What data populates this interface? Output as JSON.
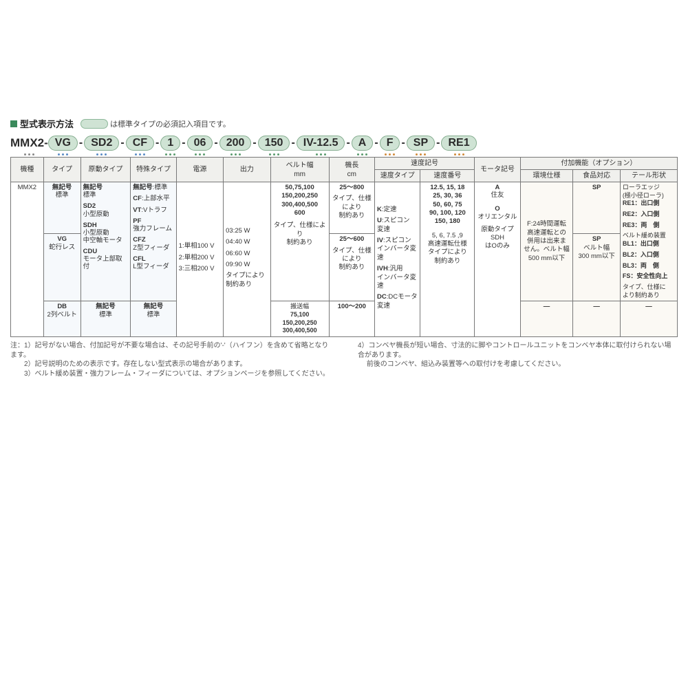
{
  "title": "型式表示方法",
  "title_note": "は標準タイプの必須記入項目です。",
  "code": {
    "prefix": "MMX2-",
    "segments": [
      {
        "text": "VG",
        "dots": "db"
      },
      {
        "text": "SD2",
        "dots": "db"
      },
      {
        "text": "CF",
        "dots": "db"
      },
      {
        "text": "1",
        "dots": "dg"
      },
      {
        "text": "06",
        "dots": "dg"
      },
      {
        "text": "200",
        "dots": "dg"
      },
      {
        "text": "150",
        "dots": "dg"
      },
      {
        "text": "IV-12.5",
        "dots": "dg"
      },
      {
        "text": "A",
        "dots": "dg"
      },
      {
        "text": "F",
        "dots": "do"
      },
      {
        "text": "SP",
        "dots": "do"
      },
      {
        "text": "RE1",
        "dots": "do"
      }
    ]
  },
  "headers": {
    "h1": "機種",
    "h2": "タイプ",
    "h3": "原動タイプ",
    "h4": "特殊タイプ",
    "h5": "電源",
    "h6": "出力",
    "h7": "ベルト幅\nmm",
    "h8": "機長\ncm",
    "h9": "速度記号",
    "h9a": "速度タイプ",
    "h9b": "速度番号",
    "h10": "モータ記号",
    "h11": "付加機能（オプション）",
    "h11a": "環境仕様",
    "h11b": "食品対応",
    "h11c": "テール形状"
  },
  "widths": {
    "c1": 46,
    "c2": 52,
    "c3": 70,
    "c4": 64,
    "c5": 66,
    "c6": 66,
    "c7": 82,
    "c8": 64,
    "c9a": 64,
    "c9b": 76,
    "c10": 64,
    "c11a": 74,
    "c11b": 66,
    "c11c": 80
  },
  "cells": {
    "model": "MMX2",
    "type1": {
      "code": "無記号",
      "label": "標準"
    },
    "type2": {
      "code": "VG",
      "label": "蛇行レス"
    },
    "type3": {
      "code": "DB",
      "label": "2列ベルト"
    },
    "drive1": {
      "code": "無記号",
      "label": "標準"
    },
    "drive2": {
      "code": "SD2",
      "label": "小型原動"
    },
    "drive3": {
      "code": "SDH",
      "label": "小型原動\n中空軸モータ"
    },
    "drive4": {
      "code": "CDU",
      "label": "モータ上部取付"
    },
    "drive5": {
      "code": "無記号",
      "label": "標準"
    },
    "sp1": {
      "code": "無記号",
      "label": ":標準"
    },
    "sp2": {
      "code": "CF",
      "label": ":上部水平"
    },
    "sp3": {
      "code": "VT",
      "label": ":Vトラフ"
    },
    "sp4": {
      "code": "PF",
      "label": "強力フレーム"
    },
    "sp5": {
      "code": "CFZ",
      "label": "Z型フィーダ"
    },
    "sp6": {
      "code": "CFL",
      "label": "L型フィーダ"
    },
    "sp7": {
      "code": "無記号",
      "label": "標準"
    },
    "pw1": "1:単相100 V",
    "pw2": "2:単相200 V",
    "pw3": "3:三相200 V",
    "out1": "03:25 W",
    "out2": "04:40 W",
    "out3": "06:60 W",
    "out4": "09:90 W",
    "out_note": "タイプにより\n制約あり",
    "bw1": "50,75,100\n150,200,250\n300,400,500\n600",
    "bw1_note": "タイプ、仕様により\n制約あり",
    "bw2_h": "搬送幅",
    "bw2": "75,100\n150,200,250\n300,400,500",
    "len1": "25～800",
    "len1_note": "タイプ、仕様\nにより\n制約あり",
    "len2": "25～600",
    "len2_note": "タイプ、仕様\nにより\n制約あり",
    "len3": "100～200",
    "spd1": {
      "code": "K",
      "label": ":定速"
    },
    "spd2": {
      "code": "U",
      "label": ":スピコン\n変速"
    },
    "spd3": {
      "code": "IV",
      "label": ":スピコン\nインバータ変速"
    },
    "spd4": {
      "code": "IVH",
      "label": ":汎用\nインバータ変速"
    },
    "spd5": {
      "code": "DC",
      "label": ":DCモータ\n変速"
    },
    "spdnum1": "12.5, 15, 18\n25, 30, 36\n50, 60, 75\n90, 100, 120\n150, 180",
    "spdnum2": "5, 6, 7.5 ,9\n高速運転仕様\nタイプにより\n制約あり",
    "motor1": {
      "code": "A",
      "label": "住友"
    },
    "motor2": {
      "code": "O",
      "label": "オリエンタル"
    },
    "motor_note": "原動タイプSDH\nはOのみ",
    "env": "F:24時間運転\n高速運転との\n併用は出来ま\nせん。ベルト幅\n500 mm以下",
    "food1": "SP",
    "food2": "SP\nベルト幅\n300 mm以下",
    "tail_head": "ローラエッジ\n(極小径ローラ)",
    "tail1": "RE1：出口側",
    "tail2": "RE2：入口側",
    "tail3": "RE3：両　側",
    "tail_bl_head": "ベルト緩め装置",
    "tail4": "BL1：出口側",
    "tail5": "BL2：入口側",
    "tail6": "BL3：両　側",
    "tail_fs": "FS：安全性向上",
    "tail_note": "タイプ、仕様に\nより制約あり",
    "dash": "―"
  },
  "notes_left": "注：1）記号がない場合、付加記号が不要な場合は、その記号手前の'-'（ハイフン）を含めて省略となります。\n　　2）記号説明のための表示です。存在しない型式表示の場合があります。\n　　3）ベルト緩め装置・強力フレーム・フィーダについては、オプションページを参照してください。",
  "notes_right": "4）コンベヤ機長が短い場合、寸法的に脚やコントロールユニットをコンベヤ本体に取付けられない場合があります。\n　 前後のコンベヤ、組込み装置等への取付けを考慮してください。"
}
